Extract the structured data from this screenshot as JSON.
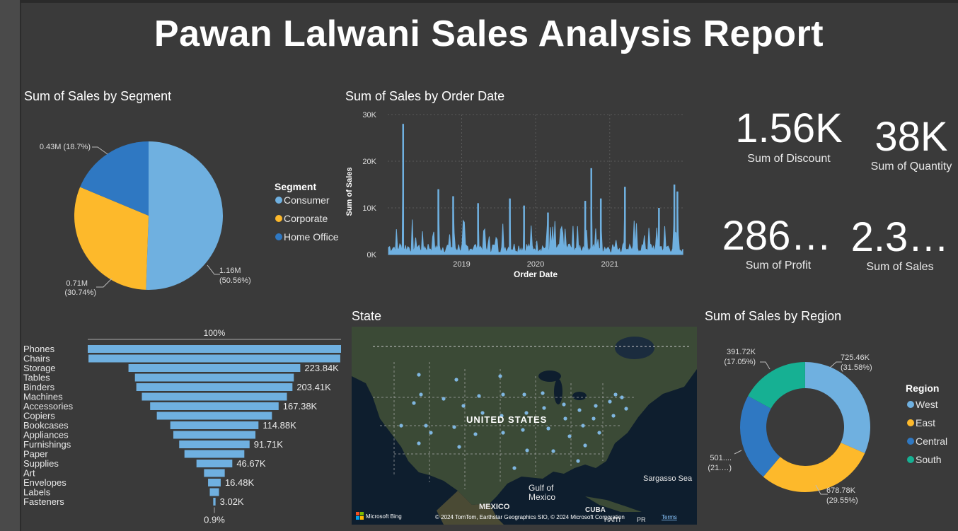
{
  "report_title": "Pawan Lalwani Sales Analysis Report",
  "kpis": {
    "discount": {
      "value": "1.56K",
      "label": "Sum of Discount"
    },
    "quantity": {
      "value": "38K",
      "label": "Sum of Quantity"
    },
    "profit": {
      "value": "286…",
      "label": "Sum of Profit"
    },
    "sales": {
      "value": "2.3…",
      "label": "Sum of Sales"
    }
  },
  "map": {
    "title": "State",
    "country_label": "UNITED STATES",
    "labels": {
      "mexico": "MEXICO",
      "gulf_line1": "Gulf of",
      "gulf_line2": "Mexico",
      "sargasso": "Sargasso Sea",
      "cuba": "CUBA",
      "haiti": "HAITI",
      "pr": "PR"
    },
    "bing": "Microsoft Bing",
    "attribution": "© 2024 TomTom, Earthstar Geographics SIO, © 2024 Microsoft Corporation",
    "terms": "Terms",
    "colors": {
      "water": "#0e1e2e",
      "land": "#3b4a36",
      "dots": "#7fb6e0"
    }
  },
  "colors": {
    "consumer": "#6fb0e0",
    "corporate": "#fdb92b",
    "home_office": "#2f78c2",
    "west": "#6fb0e0",
    "east": "#fdb92b",
    "central": "#2f78c2",
    "south": "#16b093",
    "bar": "#6fb0e0"
  },
  "chart_data": [
    {
      "type": "pie",
      "title": "Sum of Sales by Segment",
      "legend_title": "Segment",
      "legend_position": "right",
      "slices": [
        {
          "name": "Consumer",
          "value": 1.16,
          "percent": 50.56,
          "label_value": "1.16M",
          "label_pct": "(50.56%)"
        },
        {
          "name": "Corporate",
          "value": 0.71,
          "percent": 30.74,
          "label_value": "0.71M",
          "label_pct": "(30.74%)"
        },
        {
          "name": "Home Office",
          "value": 0.43,
          "percent": 18.7,
          "label_value": "0.43M (18.7%)",
          "label_pct": ""
        }
      ]
    },
    {
      "type": "line",
      "title": "Sum of Sales by Order Date",
      "xlabel": "Order Date",
      "ylabel": "Sum of Sales",
      "y_ticks": [
        "0K",
        "10K",
        "20K",
        "30K"
      ],
      "ylim": [
        0,
        30000
      ],
      "x_ticks": [
        "2019",
        "2020",
        "2021"
      ],
      "xlim": [
        "2018-01-01",
        "2021-12-31"
      ],
      "grid": true,
      "area_fill": true,
      "peaks": [
        {
          "date": "2018-03-18",
          "value": 28000
        },
        {
          "date": "2018-09-08",
          "value": 14000
        },
        {
          "date": "2018-11-20",
          "value": 12500
        },
        {
          "date": "2019-03-23",
          "value": 11000
        },
        {
          "date": "2019-08-27",
          "value": 12000
        },
        {
          "date": "2019-11-05",
          "value": 10500
        },
        {
          "date": "2020-03-02",
          "value": 9000
        },
        {
          "date": "2020-09-02",
          "value": 11500
        },
        {
          "date": "2020-10-02",
          "value": 18500
        },
        {
          "date": "2020-11-18",
          "value": 12000
        },
        {
          "date": "2021-03-17",
          "value": 14500
        },
        {
          "date": "2021-09-01",
          "value": 10000
        },
        {
          "date": "2021-11-16",
          "value": 15000
        },
        {
          "date": "2021-12-01",
          "value": 13500
        }
      ]
    },
    {
      "type": "bar",
      "subtype": "funnel",
      "top_label": "100%",
      "bottom_label": "0.9%",
      "categories": [
        "Phones",
        "Chairs",
        "Storage",
        "Tables",
        "Binders",
        "Machines",
        "Accessories",
        "Copiers",
        "Bookcases",
        "Appliances",
        "Furnishings",
        "Paper",
        "Supplies",
        "Art",
        "Envelopes",
        "Labels",
        "Fasteners"
      ],
      "values": [
        330000,
        328000,
        223840,
        207000,
        203410,
        189000,
        167380,
        150000,
        114880,
        107000,
        91710,
        78000,
        46670,
        27000,
        16480,
        12000,
        3020
      ],
      "data_labels": [
        "",
        "",
        "223.84K",
        "",
        "203.41K",
        "",
        "167.38K",
        "",
        "114.88K",
        "",
        "91.71K",
        "",
        "46.67K",
        "",
        "16.48K",
        "",
        "3.02K"
      ]
    },
    {
      "type": "pie",
      "subtype": "donut",
      "title": "Sum of Sales by Region",
      "legend_title": "Region",
      "legend_position": "right",
      "slices": [
        {
          "name": "West",
          "value": 725.46,
          "percent": 31.58,
          "label_value": "725.46K",
          "label_pct": "(31.58%)"
        },
        {
          "name": "East",
          "value": 678.78,
          "percent": 29.55,
          "label_value": "678.78K",
          "label_pct": "(29.55%)"
        },
        {
          "name": "Central",
          "value": 501,
          "percent": 21.8,
          "label_value": "501....",
          "label_pct": "(21.…)"
        },
        {
          "name": "South",
          "value": 391.72,
          "percent": 17.05,
          "label_value": "391.72K",
          "label_pct": "(17.05%)"
        }
      ]
    }
  ]
}
